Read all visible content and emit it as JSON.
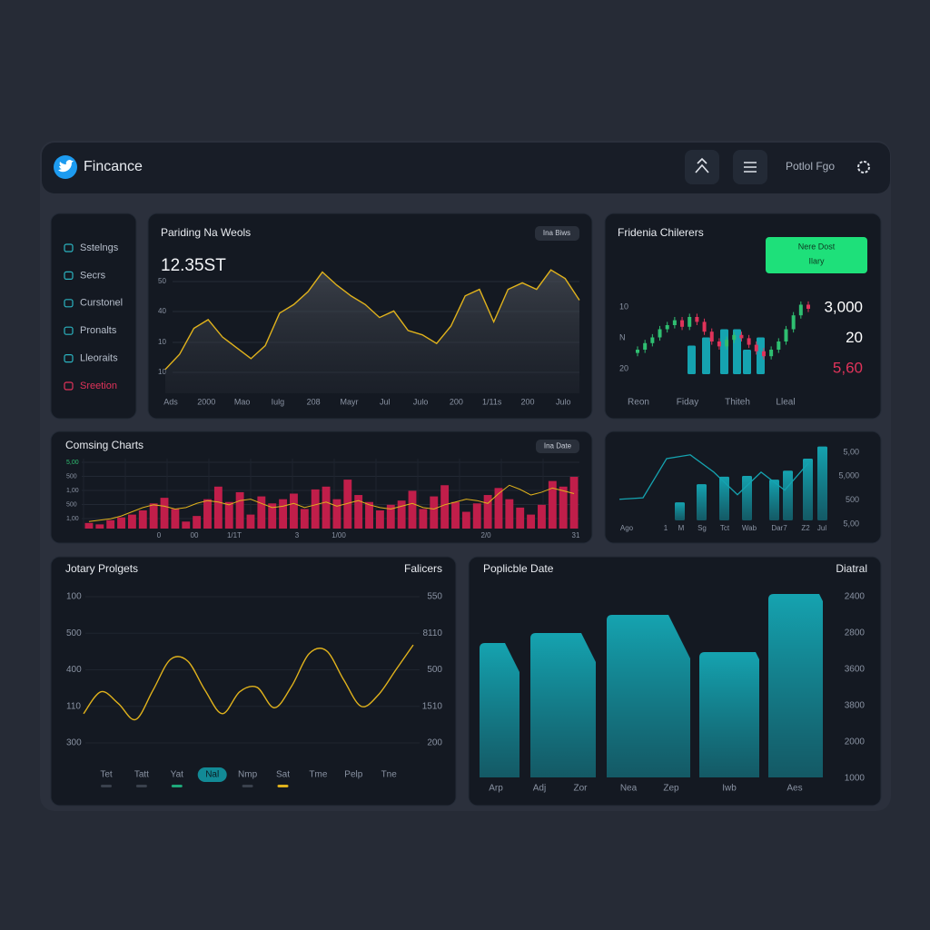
{
  "header": {
    "brand": "Fincance",
    "profile": "Potlol Fgo"
  },
  "sidebar": {
    "items": [
      "Sstelngs",
      "Secrs",
      "Curstonel",
      "Pronalts",
      "Lleoraits",
      "Sreetion"
    ],
    "alert_index": 5,
    "alert_color": "#e0335a",
    "icon_color": "#2bb3c0"
  },
  "panels": {
    "trading": {
      "title": "Pariding Na Weols",
      "badge": "Ina Biws",
      "value": "12.35ST",
      "ylabels": [
        "50",
        "40",
        "10",
        "10"
      ],
      "xlabels": [
        "Ads",
        "2000",
        "Mao",
        "Iulg",
        "208",
        "Mayr",
        "Jul",
        "Julo",
        "200",
        "1/11s",
        "200",
        "Julo"
      ],
      "values": [
        11,
        18,
        30,
        34,
        26,
        21,
        16,
        22,
        37,
        41,
        47,
        56,
        50,
        45,
        41,
        35,
        38,
        29,
        27,
        23,
        31,
        45,
        48,
        33,
        48,
        51,
        48,
        57,
        53,
        43
      ],
      "ylim": [
        0,
        60
      ],
      "color": "#e0b21c"
    },
    "candles": {
      "title": "Fridenia Chilerers",
      "button": [
        "Nere Dost",
        "Ilary"
      ],
      "button_color": "#1ee07a",
      "ylabels": [
        "10",
        "N",
        "20"
      ],
      "xlabels": [
        "Reon",
        "Fiday",
        "Thiteh",
        "Lleal"
      ],
      "stats": [
        "3,000",
        "20",
        "5,60"
      ],
      "stat_colors": [
        "#ffffff",
        "#ffffff",
        "#e0335a"
      ],
      "open": [
        26,
        30,
        38,
        45,
        55,
        60,
        66,
        58,
        70,
        64,
        52,
        40,
        34,
        42,
        48,
        44,
        36,
        28,
        22,
        30,
        40,
        55,
        72,
        85
      ],
      "high": [
        34,
        42,
        49,
        59,
        64,
        70,
        70,
        74,
        74,
        68,
        56,
        44,
        46,
        52,
        52,
        48,
        40,
        32,
        34,
        44,
        59,
        76,
        89,
        89
      ],
      "low": [
        22,
        26,
        34,
        41,
        51,
        56,
        54,
        54,
        60,
        48,
        36,
        30,
        30,
        38,
        40,
        32,
        24,
        18,
        18,
        26,
        36,
        51,
        68,
        76
      ],
      "close": [
        30,
        38,
        45,
        55,
        60,
        66,
        58,
        70,
        64,
        52,
        40,
        34,
        42,
        48,
        44,
        36,
        28,
        22,
        30,
        40,
        55,
        72,
        85,
        80
      ],
      "ylim": [
        0,
        100
      ],
      "up_color": "#2fbf71",
      "down_color": "#e0335a",
      "bars": [
        35,
        45,
        55,
        55,
        30,
        45
      ],
      "bar_color": "#15a3b0"
    },
    "combo": {
      "title": "Comsing Charts",
      "badge": "Ina Date",
      "ylabels": [
        "5,00",
        "500",
        "1,00",
        "500",
        "1,00"
      ],
      "ylabel_colors": [
        "#2fbf71",
        "#8a93a3",
        "#8a93a3",
        "#8a93a3",
        "#8a93a3"
      ],
      "xlabels": [
        "0",
        "00",
        "1/1T",
        "3",
        "1/00",
        "2/0",
        "31"
      ],
      "bars": [
        8,
        6,
        12,
        16,
        20,
        26,
        36,
        44,
        28,
        10,
        18,
        42,
        60,
        38,
        52,
        20,
        46,
        36,
        42,
        50,
        28,
        56,
        60,
        42,
        70,
        48,
        38,
        26,
        34,
        40,
        54,
        28,
        46,
        62,
        38,
        24,
        36,
        48,
        58,
        42,
        30,
        20,
        34,
        68,
        60,
        74
      ],
      "line": [
        10,
        12,
        14,
        18,
        24,
        30,
        34,
        32,
        28,
        30,
        36,
        40,
        38,
        34,
        40,
        42,
        36,
        30,
        32,
        36,
        30,
        34,
        38,
        32,
        36,
        40,
        34,
        30,
        28,
        32,
        36,
        30,
        28,
        34,
        38,
        42,
        40,
        36,
        50,
        62,
        56,
        48,
        52,
        58,
        54,
        50
      ],
      "ylim": [
        0,
        100
      ],
      "bar_color": "#c01e4a",
      "line_color": "#e0b21c"
    },
    "mini": {
      "ylabels": [
        "5,00",
        "5,000",
        "500",
        "5,00"
      ],
      "xlabels": [
        "Ago",
        "1",
        "M",
        "Sg",
        "Tct",
        "Wab",
        "Dar7",
        "Z2",
        "Jul"
      ],
      "bars": [
        24,
        48,
        58,
        59,
        54,
        66,
        82,
        98
      ],
      "line": [
        28,
        30,
        82,
        87,
        64,
        34,
        64,
        40,
        76
      ],
      "ylim": [
        0,
        100
      ],
      "color": "#15a3b0"
    },
    "projects": {
      "title": "Jotary Prolgets",
      "title_right": "Falicers",
      "ylabels": [
        "100",
        "500",
        "400",
        "110",
        "300"
      ],
      "ylabels_right": [
        "550",
        "8110",
        "500",
        "1510",
        "200"
      ],
      "xlabels": [
        "Tet",
        "Tatt",
        "Yat",
        "Nal",
        "Nmp",
        "Sat",
        "Tme",
        "Pelp",
        "Tne"
      ],
      "selected": 3,
      "values": [
        20,
        35,
        27,
        16,
        36,
        57,
        56,
        36,
        20,
        35,
        38,
        24,
        39,
        61,
        63,
        43,
        25,
        33,
        50,
        67
      ],
      "ylim": [
        0,
        100
      ],
      "color": "#e0b21c"
    },
    "date": {
      "title": "Poplicble Date",
      "title_right": "Diatral",
      "ylabels": [
        "2400",
        "2800",
        "3600",
        "3800",
        "2000",
        "1000"
      ],
      "xlabels": [
        "Arp",
        "Adj",
        "Zor",
        "Nea",
        "Zep",
        "Iwb",
        "Aes"
      ],
      "values": [
        148,
        159,
        179,
        138,
        202
      ],
      "ylim": [
        0,
        210
      ],
      "color": "#138e9c"
    }
  }
}
